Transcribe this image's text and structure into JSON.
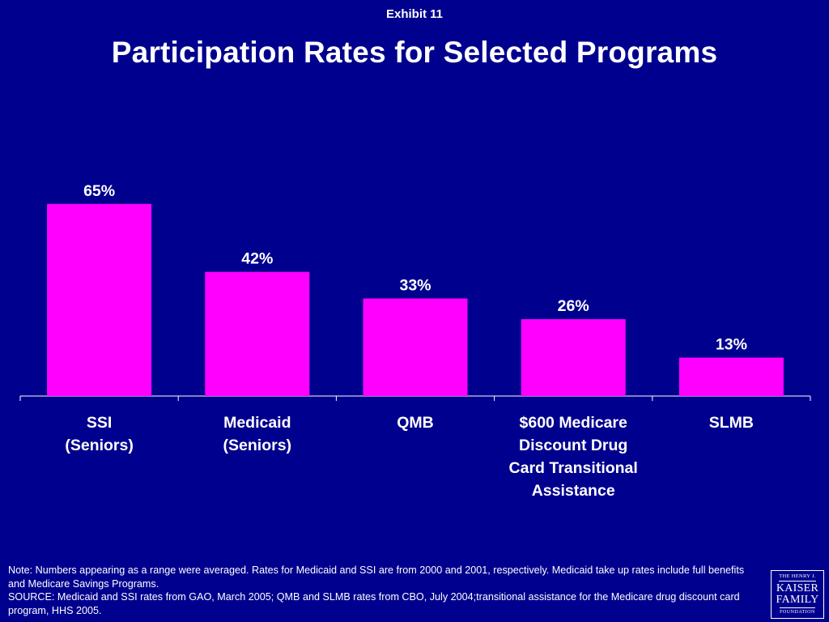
{
  "header": {
    "exhibit": "Exhibit 11",
    "title": "Participation Rates for Selected Programs"
  },
  "colors": {
    "background": "#00008E",
    "bar": "#FF00FF",
    "text": "#FFFFFF"
  },
  "chart_data": {
    "type": "bar",
    "title": "Participation Rates for Selected Programs",
    "categories": [
      [
        "SSI",
        "(Seniors)"
      ],
      [
        "Medicaid",
        "(Seniors)"
      ],
      [
        "QMB"
      ],
      [
        "$600 Medicare",
        "Discount Drug",
        "Card Transitional",
        "Assistance"
      ],
      [
        "SLMB"
      ]
    ],
    "values": [
      65,
      42,
      33,
      26,
      13
    ],
    "data_labels": [
      "65%",
      "42%",
      "33%",
      "26%",
      "13%"
    ],
    "xlabel": "",
    "ylabel": "",
    "ylim": [
      0,
      100
    ],
    "grid": false,
    "legend": "none"
  },
  "footer": {
    "note": "Note: Numbers appearing as a range were averaged. Rates for Medicaid and SSI are from 2000 and 2001, respectively.  Medicaid take up rates include full benefits and Medicare Savings Programs.",
    "source": "SOURCE: Medicaid and SSI rates from GAO, March 2005; QMB and SLMB rates from CBO, July 2004;transitional assistance for the Medicare drug discount card program, HHS 2005."
  },
  "logo": {
    "line1": "THE HENRY J.",
    "line2": "KAISER",
    "line3": "FAMILY",
    "line4": "FOUNDATION"
  }
}
